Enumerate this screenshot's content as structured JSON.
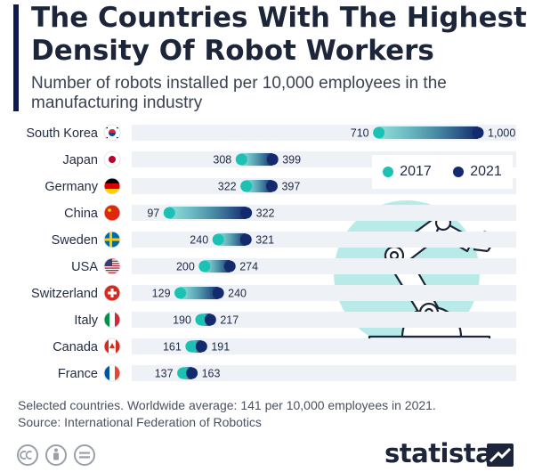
{
  "title": "The Countries With The Highest Density Of Robot Workers",
  "subtitle": "Number of robots installed per 10,000 employees in the manufacturing industry",
  "footer": {
    "note": "Selected countries. Worldwide average: 141 per 10,000 employees in 2021.",
    "source": "Source: International Federation of Robotics"
  },
  "brand": "statista",
  "colors": {
    "y2017": "#1bc2b4",
    "y2021": "#142a6e",
    "track": "#eef1f6",
    "illustration_circle": "#b8ebe7"
  },
  "chart_data": {
    "type": "dumbbell",
    "xlim": [
      0,
      1000
    ],
    "legend": {
      "position": "top-right",
      "entries": [
        "2017",
        "2021"
      ]
    },
    "categories": [
      "South Korea",
      "Japan",
      "Germany",
      "China",
      "Sweden",
      "USA",
      "Switzerland",
      "Italy",
      "Canada",
      "France"
    ],
    "flags": [
      "kr-flag-icon",
      "jp-flag-icon",
      "de-flag-icon",
      "cn-flag-icon",
      "se-flag-icon",
      "us-flag-icon",
      "ch-flag-icon",
      "it-flag-icon",
      "ca-flag-icon",
      "fr-flag-icon"
    ],
    "series": [
      {
        "name": "2017",
        "values": [
          710,
          308,
          322,
          97,
          240,
          200,
          129,
          190,
          161,
          137
        ]
      },
      {
        "name": "2021",
        "values": [
          1000,
          399,
          397,
          322,
          321,
          274,
          240,
          217,
          191,
          163
        ]
      }
    ],
    "value_labels": {
      "2017": [
        "710",
        "308",
        "322",
        "97",
        "240",
        "200",
        "129",
        "190",
        "161",
        "137"
      ],
      "2021": [
        "1,000",
        "399",
        "397",
        "322",
        "321",
        "274",
        "240",
        "217",
        "191",
        "163"
      ]
    }
  }
}
